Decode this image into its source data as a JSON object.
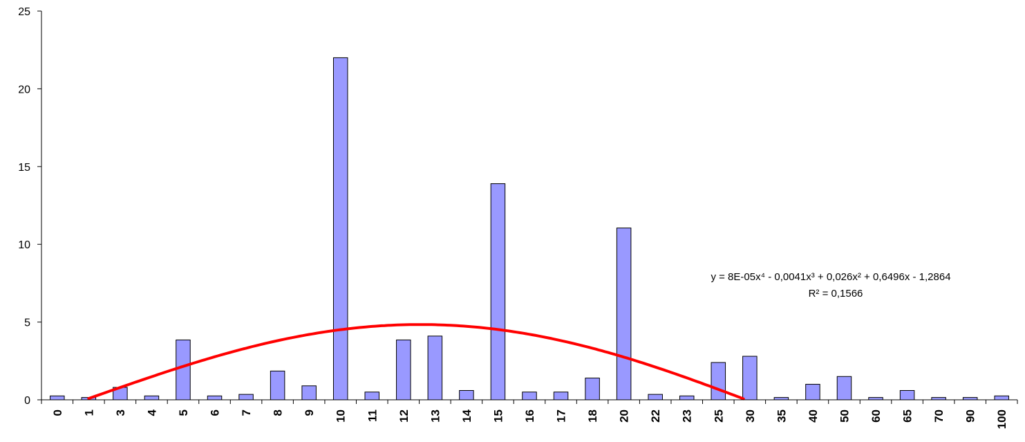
{
  "chart_data": {
    "type": "bar",
    "categories": [
      "0",
      "1",
      "3",
      "4",
      "5",
      "6",
      "7",
      "8",
      "9",
      "10",
      "11",
      "12",
      "13",
      "14",
      "15",
      "16",
      "17",
      "18",
      "20",
      "22",
      "23",
      "25",
      "30",
      "35",
      "40",
      "50",
      "60",
      "65",
      "70",
      "90",
      "100"
    ],
    "values": [
      0.25,
      0.15,
      0.8,
      0.25,
      3.85,
      0.25,
      0.35,
      1.85,
      0.9,
      22.0,
      0.5,
      3.85,
      4.1,
      0.6,
      13.9,
      0.5,
      0.5,
      1.4,
      11.05,
      0.35,
      0.25,
      2.4,
      2.8,
      0.15,
      1.0,
      1.5,
      0.15,
      0.6,
      0.15,
      0.15,
      0.25
    ],
    "ylim": [
      0,
      25
    ],
    "yticks": [
      "0",
      "5",
      "10",
      "15",
      "20",
      "25"
    ],
    "grid": false,
    "legend": "none",
    "trendline": {
      "type": "polynomial",
      "order": 4,
      "coefficients": [
        8e-05,
        -0.0041,
        0.026,
        0.6496,
        -1.2864
      ],
      "equation": "y = 8E-05x⁴ - 0,0041x³ + 0,026x² + 0,6496x - 1,2864",
      "r_squared": "R² = 0,1566",
      "color": "#ff0000"
    },
    "bar_color": "#9999ff",
    "title": "",
    "xlabel": "",
    "ylabel": ""
  }
}
